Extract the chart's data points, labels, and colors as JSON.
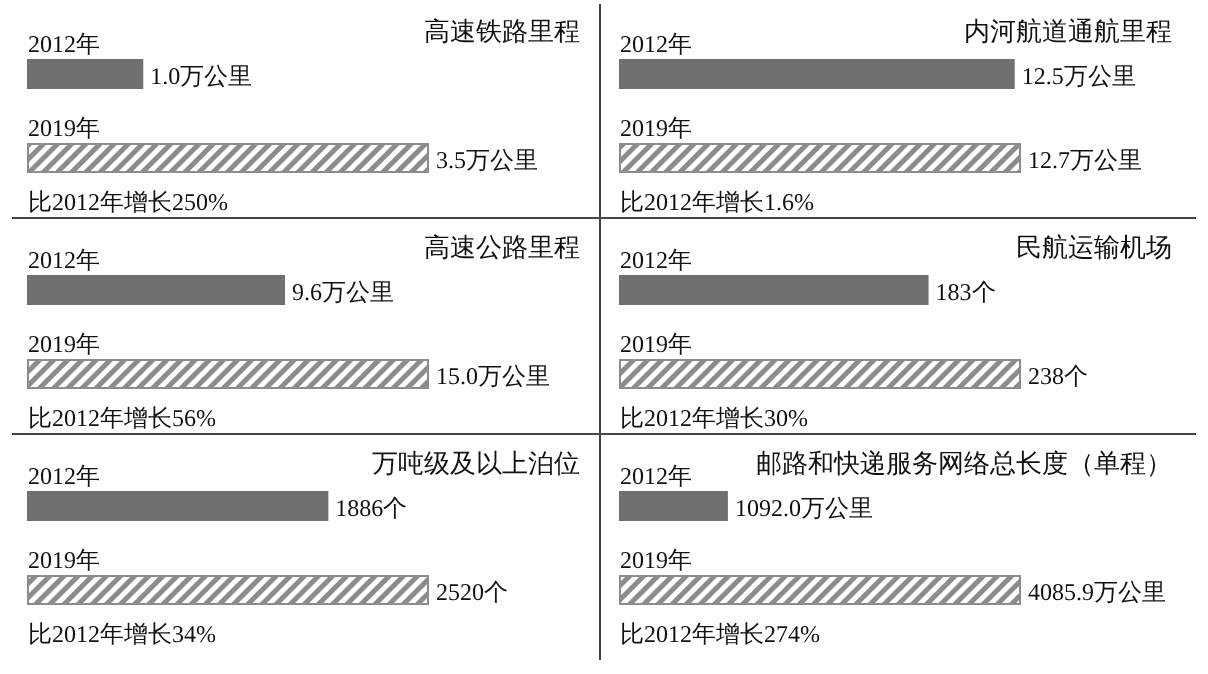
{
  "chart_data": [
    {
      "type": "bar",
      "orientation": "horizontal",
      "title": "高速铁路里程",
      "categories": [
        "2012年",
        "2019年"
      ],
      "values": [
        1.0,
        3.5
      ],
      "value_labels": [
        "1.0万公里",
        "3.5万公里"
      ],
      "colors": [
        "#707070",
        "#8c8c8c"
      ],
      "annotations": [
        "比2012年增长250%"
      ]
    },
    {
      "type": "bar",
      "orientation": "horizontal",
      "title": "内河航道通航里程",
      "categories": [
        "2012年",
        "2019年"
      ],
      "values": [
        12.5,
        12.7
      ],
      "value_labels": [
        "12.5万公里",
        "12.7万公里"
      ],
      "colors": [
        "#707070",
        "#8c8c8c"
      ],
      "annotations": [
        "比2012年增长1.6%"
      ]
    },
    {
      "type": "bar",
      "orientation": "horizontal",
      "title": "高速公路里程",
      "categories": [
        "2012年",
        "2019年"
      ],
      "values": [
        9.6,
        15.0
      ],
      "value_labels": [
        "9.6万公里",
        "15.0万公里"
      ],
      "colors": [
        "#707070",
        "#8c8c8c"
      ],
      "annotations": [
        "比2012年增长56%"
      ]
    },
    {
      "type": "bar",
      "orientation": "horizontal",
      "title": "民航运输机场",
      "categories": [
        "2012年",
        "2019年"
      ],
      "values": [
        183,
        238
      ],
      "value_labels": [
        "183个",
        "238个"
      ],
      "colors": [
        "#707070",
        "#8c8c8c"
      ],
      "annotations": [
        "比2012年增长30%"
      ]
    },
    {
      "type": "bar",
      "orientation": "horizontal",
      "title": "万吨级及以上泊位",
      "categories": [
        "2012年",
        "2019年"
      ],
      "values": [
        1886,
        2520
      ],
      "value_labels": [
        "1886个",
        "2520个"
      ],
      "colors": [
        "#707070",
        "#8c8c8c"
      ],
      "annotations": [
        "比2012年增长34%"
      ]
    },
    {
      "type": "bar",
      "orientation": "horizontal",
      "title": "邮路和快递服务网络总长度（单程）",
      "categories": [
        "2012年",
        "2019年"
      ],
      "values": [
        1092.0,
        4085.9
      ],
      "value_labels": [
        "1092.0万公里",
        "4085.9万公里"
      ],
      "colors": [
        "#707070",
        "#8c8c8c"
      ],
      "annotations": [
        "比2012年增长274%"
      ]
    }
  ]
}
